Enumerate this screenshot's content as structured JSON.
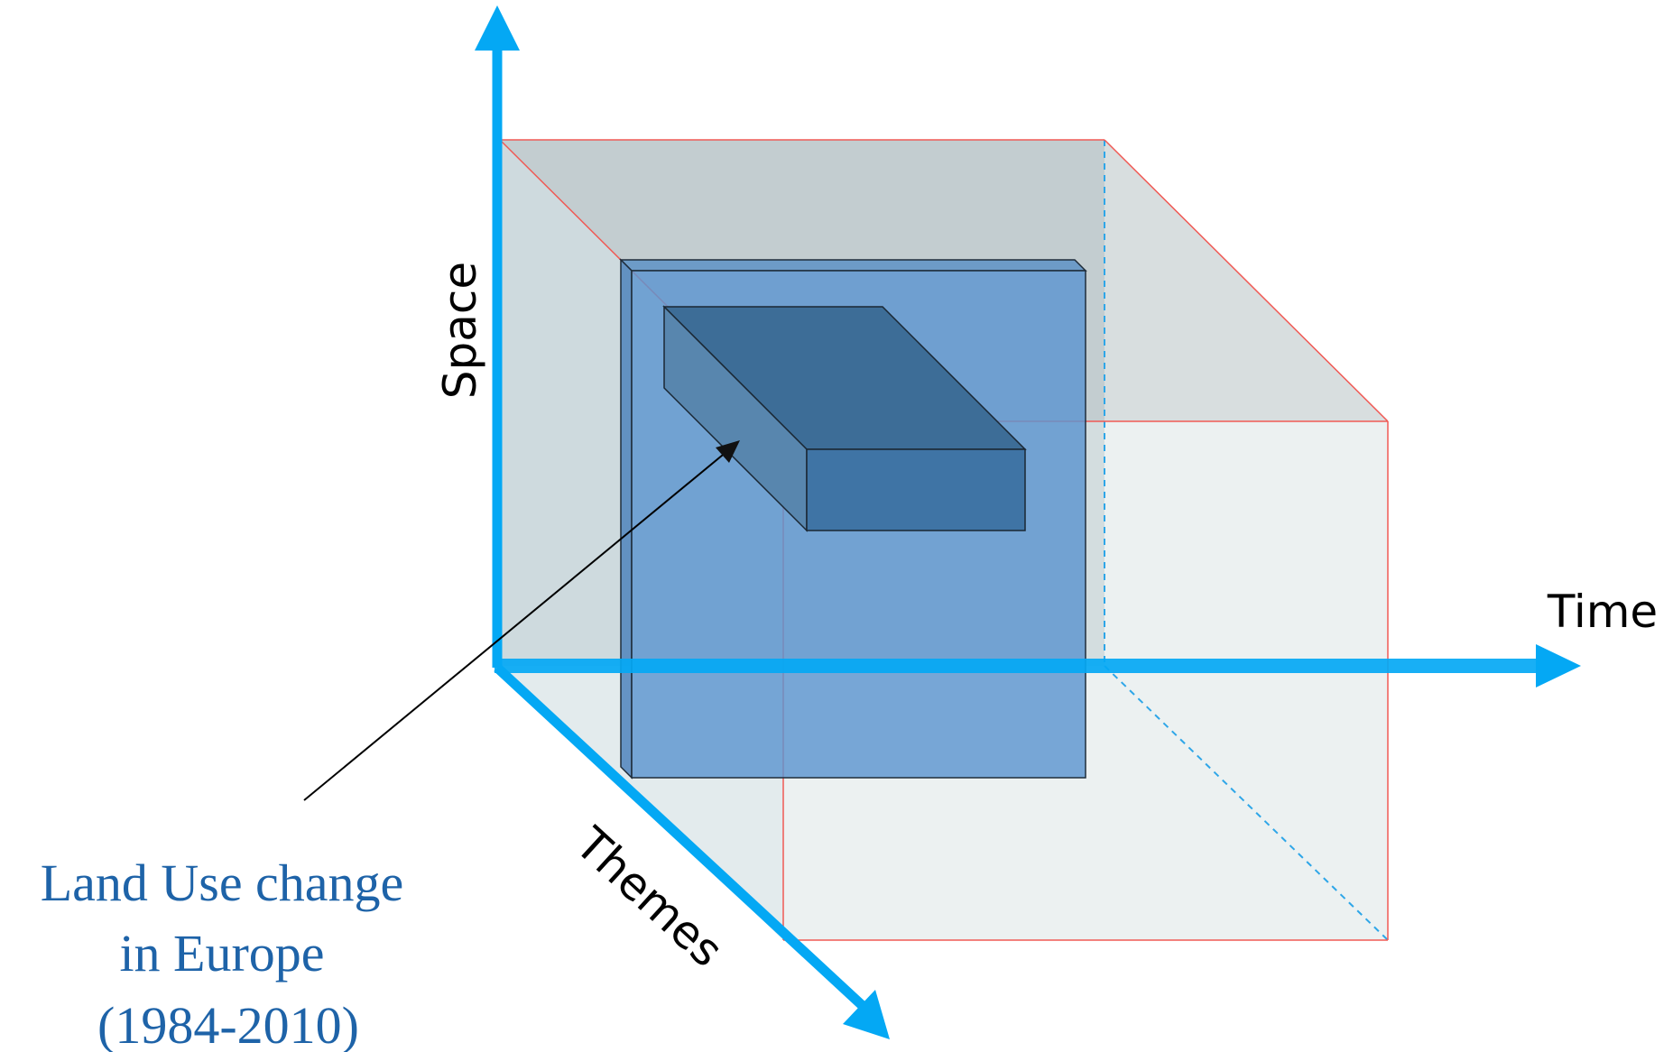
{
  "axes": {
    "space_label": "Space",
    "time_label": "Time",
    "themes_label": "Themes"
  },
  "caption": {
    "line1": "Land Use change",
    "line2": "in Europe",
    "line3": "(1984-2010)"
  },
  "colors": {
    "axis": "#04A8F4",
    "cube_fill": "#B9C8CC",
    "cube_edge": "#F05A55",
    "slice_fill": "#5D95CF",
    "block_fill": "#36699A",
    "caption_text": "#1E63A8",
    "pointer": "#000000"
  }
}
